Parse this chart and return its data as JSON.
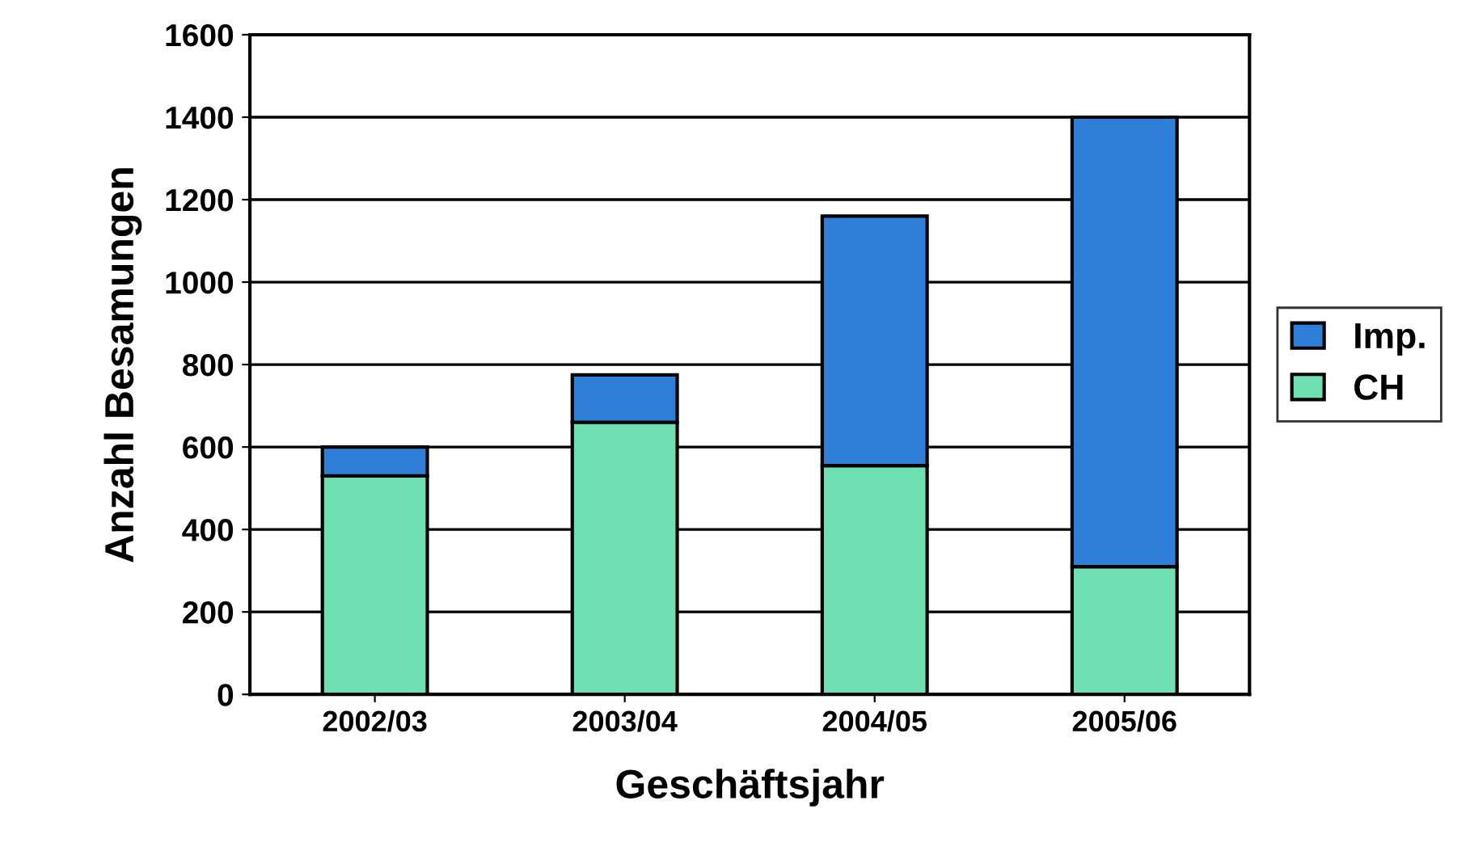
{
  "chart_data": {
    "type": "bar",
    "stacked": true,
    "xlabel": "Geschäftsjahr",
    "ylabel": "Anzahl Besamungen",
    "categories": [
      "2002/03",
      "2003/04",
      "2004/05",
      "2005/06"
    ],
    "series": [
      {
        "name": "CH",
        "color": "#6fe0b2",
        "values": [
          530,
          660,
          555,
          310
        ]
      },
      {
        "name": "Imp.",
        "color": "#2e7fd8",
        "values": [
          70,
          115,
          605,
          1090
        ]
      }
    ],
    "ylim": [
      0,
      1600
    ],
    "yticks": [
      0,
      200,
      400,
      600,
      800,
      1000,
      1200,
      1400,
      1600
    ],
    "grid": "y",
    "legend": "right"
  }
}
